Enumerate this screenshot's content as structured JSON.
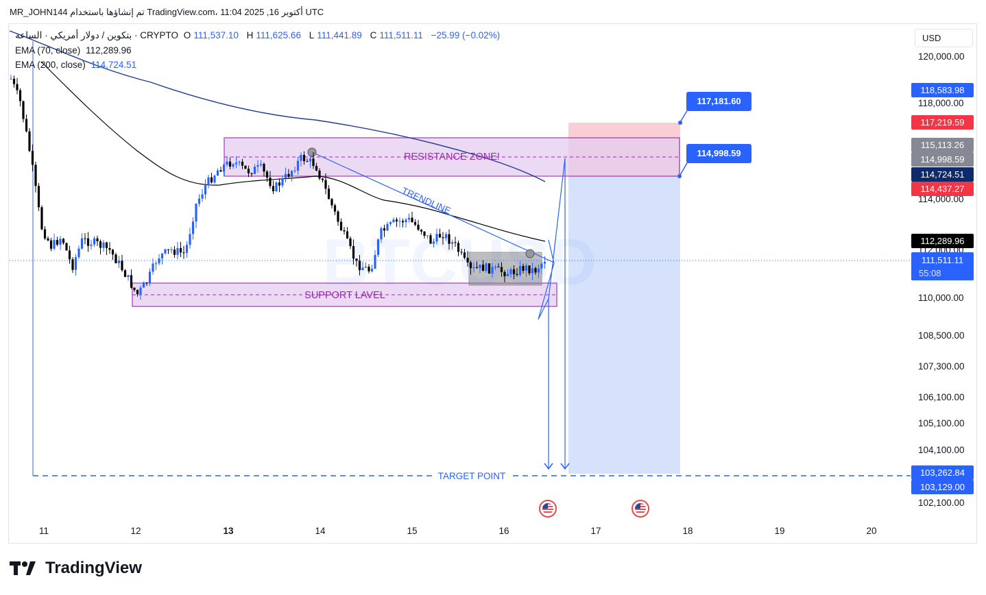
{
  "header": {
    "author_line": "MR_JOHN144 تم إنشاؤها باستخدام TradingView.com، 11:04 2025 ,16 أكتوبر UTC"
  },
  "legend": {
    "symbol": "بتكوين / دولار أمريكي · الساعة · CRYPTO",
    "open_label": "O",
    "open": "111,537.10",
    "high_label": "H",
    "high": "111,625.66",
    "low_label": "L",
    "low": "111,441.89",
    "close_label": "C",
    "close": "111,511.11",
    "change": "−25.99 (−0.02%)",
    "ema70_label": "EMA (70, close)",
    "ema70": "112,289.96",
    "ema200_label": "EMA (200, close)",
    "ema200": "114,724.51"
  },
  "currency_button": "USD",
  "price_axis": {
    "labels": [
      "120,000.00",
      "118,000.00",
      "114,000.00",
      "112,000.00",
      "110,000.00",
      "108,500.00",
      "107,300.00",
      "106,100.00",
      "105,100.00",
      "104,100.00",
      "102,100.00"
    ]
  },
  "price_tags": [
    {
      "text": "118,583.98",
      "color": "#2962ff"
    },
    {
      "text": "117,219.59",
      "color": "#f23645"
    },
    {
      "text": "115,113.26",
      "color": "#868993"
    },
    {
      "text": "114,998.59",
      "color": "#868993"
    },
    {
      "text": "114,724.51",
      "color": "#0d2a6b"
    },
    {
      "text": "114,437.27",
      "color": "#f23645"
    },
    {
      "text": "112,289.96",
      "color": "#000000"
    },
    {
      "text": "103,262.84",
      "color": "#2962ff"
    },
    {
      "text": "103,129.00",
      "color": "#2962ff"
    }
  ],
  "current_price_tag": {
    "price": "111,511.11",
    "countdown": "55:08",
    "color": "#2962ff"
  },
  "time_axis": {
    "labels": [
      "11",
      "12",
      "13",
      "14",
      "15",
      "16",
      "17",
      "18",
      "19",
      "20"
    ]
  },
  "annotations": {
    "resistance": "RESISTANCE ZONE!",
    "support": "SUPPORT LAVEL",
    "trendline": "TRENDLINE",
    "target": "TARGET POINT",
    "callout_upper": "117,181.60",
    "callout_lower": "114,998.59",
    "watermark": "BTCUSD"
  },
  "colors": {
    "up": "#2962ff",
    "down": "#000000",
    "zone_fill": "#e6cdf0",
    "zone_border": "#9c27b0",
    "stop_zone": "#f8c9cf",
    "target_zone": "#d6e1fb",
    "ema70": "#000000",
    "ema200": "#1f3a93"
  },
  "footer": {
    "brand": "TradingView"
  }
}
